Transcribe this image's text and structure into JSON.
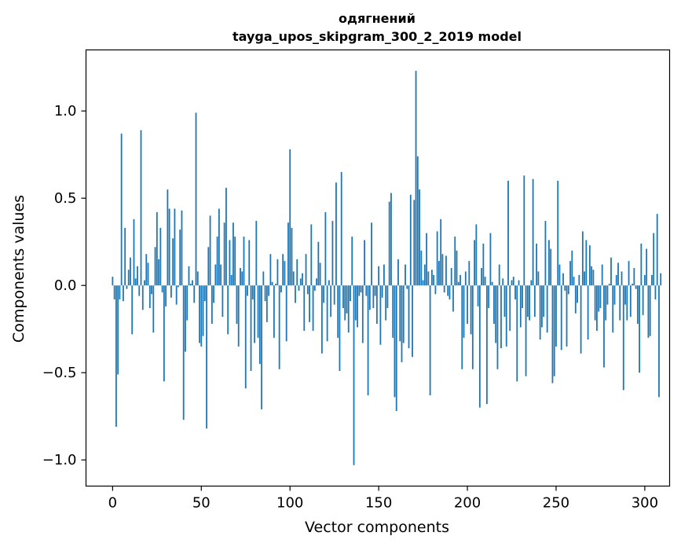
{
  "chart_data": {
    "type": "bar",
    "title": "одягнений",
    "subtitle": "tayga_upos_skipgram_300_2_2019 model",
    "xlabel": "Vector components",
    "ylabel": "Components values",
    "xlim": [
      -15,
      314
    ],
    "ylim": [
      -1.15,
      1.35
    ],
    "xticks": [
      0,
      50,
      100,
      150,
      200,
      250,
      300
    ],
    "xtick_labels": [
      "0",
      "50",
      "100",
      "150",
      "200",
      "250",
      "300"
    ],
    "yticks": [
      -1.0,
      -0.5,
      0.0,
      0.5,
      1.0
    ],
    "ytick_labels": [
      "−1.0",
      "−0.5",
      "0.0",
      "0.5",
      "1.0"
    ],
    "grid": false,
    "bar_color": "#1f77b4",
    "values": [
      0.05,
      -0.08,
      -0.81,
      -0.51,
      -0.08,
      0.87,
      -0.09,
      0.33,
      -0.02,
      0.09,
      0.16,
      -0.28,
      0.38,
      0.04,
      0.11,
      -0.06,
      0.89,
      -0.14,
      0.03,
      0.18,
      0.13,
      -0.13,
      -0.05,
      -0.27,
      0.22,
      0.42,
      0.15,
      0.33,
      -0.04,
      -0.55,
      -0.12,
      0.55,
      0.44,
      -0.07,
      0.27,
      0.44,
      -0.11,
      -0.01,
      0.32,
      0.43,
      -0.77,
      -0.38,
      -0.2,
      0.11,
      0.01,
      0.03,
      -0.1,
      0.99,
      0.08,
      -0.33,
      -0.35,
      -0.29,
      -0.09,
      -0.82,
      0.22,
      0.4,
      -0.22,
      -0.1,
      0.12,
      0.28,
      0.44,
      0.12,
      -0.18,
      0.36,
      0.56,
      -0.28,
      0.26,
      0.06,
      0.36,
      0.28,
      -0.22,
      -0.35,
      0.1,
      0.08,
      0.28,
      -0.59,
      -0.06,
      0.26,
      -0.49,
      -0.08,
      -0.33,
      0.37,
      -0.3,
      -0.45,
      -0.71,
      0.08,
      -0.09,
      -0.21,
      -0.06,
      0.18,
      0.02,
      -0.3,
      0.01,
      0.15,
      -0.48,
      -0.04,
      0.18,
      0.14,
      -0.32,
      0.36,
      0.78,
      0.33,
      0.08,
      -0.1,
      0.15,
      -0.03,
      0.04,
      0.07,
      -0.26,
      0.18,
      -0.05,
      -0.21,
      0.35,
      -0.26,
      -0.03,
      0.04,
      0.25,
      0.13,
      -0.39,
      -0.1,
      0.42,
      -0.32,
      0.03,
      -0.18,
      0.37,
      -0.11,
      0.59,
      -0.3,
      -0.49,
      0.65,
      -0.13,
      -0.2,
      -0.16,
      -0.27,
      -0.09,
      0.28,
      -1.03,
      -0.2,
      -0.24,
      -0.06,
      -0.04,
      -0.33,
      0.26,
      -0.06,
      -0.63,
      -0.14,
      0.36,
      -0.13,
      -0.06,
      -0.22,
      0.11,
      -0.34,
      -0.07,
      0.12,
      -0.2,
      -0.13,
      0.48,
      0.53,
      -0.3,
      -0.64,
      -0.72,
      0.15,
      -0.32,
      -0.44,
      -0.33,
      0.12,
      -0.02,
      -0.36,
      0.52,
      -0.41,
      0.49,
      1.23,
      0.74,
      0.55,
      0.2,
      0.03,
      0.12,
      0.3,
      0.08,
      -0.63,
      0.09,
      0.06,
      -0.05,
      0.31,
      0.14,
      0.38,
      0.18,
      -0.04,
      0.17,
      -0.06,
      -0.08,
      0.1,
      -0.15,
      0.28,
      0.2,
      0.02,
      0.06,
      -0.48,
      -0.3,
      0.08,
      -0.22,
      0.14,
      -0.28,
      -0.48,
      0.26,
      0.35,
      -0.12,
      -0.7,
      0.1,
      0.24,
      0.05,
      -0.68,
      -0.13,
      0.3,
      0.02,
      -0.22,
      -0.33,
      -0.48,
      0.12,
      -0.36,
      0.04,
      -0.18,
      -0.35,
      0.6,
      -0.26,
      0.03,
      0.05,
      -0.08,
      -0.55,
      0.03,
      -0.24,
      -0.13,
      0.63,
      -0.52,
      -0.18,
      -0.2,
      0.03,
      0.61,
      -0.18,
      0.24,
      0.08,
      -0.31,
      -0.24,
      -0.18,
      0.37,
      -0.27,
      0.26,
      0.21,
      -0.56,
      -0.52,
      -0.35,
      0.6,
      0.12,
      -0.37,
      0.07,
      -0.03,
      -0.35,
      -0.05,
      0.14,
      0.2,
      0.05,
      -0.16,
      -0.1,
      0.06,
      -0.39,
      0.31,
      0.08,
      0.26,
      -0.31,
      0.23,
      0.11,
      0.09,
      -0.2,
      -0.26,
      -0.15,
      -0.13,
      0.12,
      -0.47,
      -0.2,
      -0.11,
      0.01,
      0.16,
      -0.27,
      -0.11,
      0.06,
      0.13,
      -0.2,
      0.08,
      -0.6,
      -0.11,
      -0.2,
      0.14,
      -0.18,
      0.01,
      0.1,
      -0.02,
      -0.22,
      -0.5,
      0.24,
      -0.17,
      0.06,
      0.21,
      -0.3,
      -0.29,
      0.06,
      0.3,
      -0.08,
      0.41,
      -0.64,
      0.07
    ]
  }
}
